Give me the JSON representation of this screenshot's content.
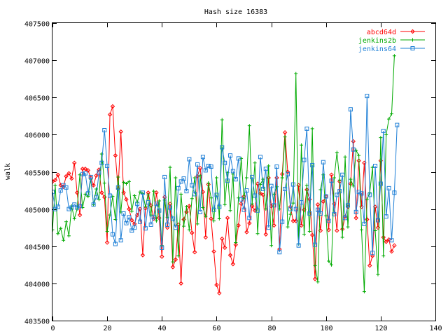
{
  "chart_data": {
    "type": "line",
    "title": "Hash size 16383",
    "xlabel": "",
    "ylabel": "walk",
    "xlim": [
      0,
      140
    ],
    "ylim": [
      403500,
      407500
    ],
    "x_ticks": [
      0,
      20,
      40,
      60,
      80,
      100,
      120,
      140
    ],
    "y_ticks": [
      403500,
      404000,
      404500,
      405000,
      405500,
      406000,
      406500,
      407000,
      407500
    ],
    "grid": false,
    "legend_position": "top-right",
    "series": [
      {
        "name": "abcd64d",
        "color": "#ff0000",
        "marker": "diamond",
        "values": [
          405370,
          405390,
          405460,
          405320,
          405300,
          405440,
          405480,
          405410,
          405620,
          405220,
          404920,
          405540,
          405540,
          405520,
          405420,
          405320,
          405450,
          405530,
          405220,
          405160,
          404550,
          406270,
          406380,
          405720,
          405270,
          406040,
          405220,
          405130,
          405000,
          404850,
          404800,
          404920,
          405000,
          404380,
          405010,
          405220,
          405050,
          404870,
          405220,
          404880,
          404360,
          405160,
          404750,
          405070,
          404220,
          404320,
          404790,
          404000,
          404860,
          404960,
          405040,
          404680,
          404420,
          405440,
          405550,
          405230,
          404620,
          405330,
          404870,
          404430,
          403980,
          403870,
          404600,
          404480,
          404880,
          404380,
          404260,
          404520,
          404780,
          405070,
          405170,
          404690,
          404810,
          405040,
          404980,
          405340,
          405210,
          405190,
          404660,
          405420,
          405040,
          404780,
          405420,
          404460,
          405470,
          406030,
          405500,
          405030,
          404840,
          404840,
          405320,
          404780,
          404990,
          405260,
          405130,
          404650,
          404060,
          405060,
          404710,
          405100,
          405170,
          404720,
          405460,
          405070,
          404710,
          405370,
          404730,
          404900,
          405030,
          405340,
          405910,
          404880,
          405650,
          405030,
          405620,
          404860,
          404240,
          404370,
          405030,
          404750,
          405650,
          404620,
          404560,
          404590,
          404430,
          404510
        ]
      },
      {
        "name": "jenkins2b",
        "color": "#00aa00",
        "marker": "plus",
        "values": [
          404720,
          405320,
          404670,
          404740,
          404580,
          404830,
          404640,
          405040,
          404870,
          405000,
          405460,
          405020,
          405200,
          405170,
          405400,
          405060,
          405270,
          405130,
          405740,
          405350,
          404700,
          404920,
          405170,
          404860,
          405430,
          404960,
          405360,
          405340,
          405370,
          404970,
          405180,
          405090,
          405230,
          405210,
          405030,
          405190,
          404920,
          405240,
          404840,
          405110,
          404510,
          405120,
          404890,
          405560,
          404290,
          405420,
          404370,
          405200,
          404770,
          405030,
          404720,
          405140,
          405420,
          404800,
          405450,
          405020,
          404900,
          405350,
          405150,
          404840,
          405420,
          404870,
          406200,
          405060,
          405490,
          404980,
          405470,
          404550,
          405150,
          405680,
          405140,
          405420,
          406120,
          405070,
          405620,
          404670,
          405330,
          405400,
          405000,
          405580,
          404510,
          405200,
          405300,
          405000,
          405420,
          405970,
          404760,
          404930,
          405080,
          406820,
          404530,
          405860,
          404660,
          405320,
          404700,
          406080,
          404240,
          404020,
          405260,
          405460,
          404910,
          404300,
          404250,
          405420,
          405760,
          405390,
          404620,
          405700,
          404760,
          405400,
          405310,
          405790,
          405720,
          404720,
          403890,
          405130,
          405220,
          405560,
          404710,
          404120,
          405960,
          404370,
          406000,
          406210,
          406280,
          407060
        ]
      },
      {
        "name": "jenkins64",
        "color": "#1e7fd6",
        "marker": "square",
        "values": [
          405230,
          405000,
          405030,
          405250,
          405320,
          405290,
          405000,
          405020,
          405060,
          405020,
          405040,
          405470,
          405480,
          405210,
          405430,
          405060,
          405160,
          405490,
          405620,
          406060,
          405580,
          405180,
          404660,
          404530,
          405290,
          404580,
          404940,
          404810,
          404890,
          404710,
          404750,
          405070,
          404830,
          405220,
          404740,
          405090,
          404790,
          404890,
          405070,
          404980,
          404480,
          405430,
          404790,
          405020,
          404870,
          404750,
          405280,
          405370,
          405410,
          405240,
          405670,
          405320,
          405200,
          405600,
          404960,
          405700,
          405520,
          405580,
          405570,
          404990,
          405190,
          405030,
          405830,
          405620,
          405380,
          405720,
          405510,
          405400,
          405680,
          405130,
          404990,
          405250,
          404880,
          405430,
          405180,
          404980,
          405700,
          405270,
          405540,
          404750,
          405310,
          405050,
          405570,
          404420,
          404830,
          405270,
          405470,
          405000,
          405330,
          405000,
          404510,
          405090,
          405660,
          406080,
          404940,
          405590,
          404520,
          404990,
          404940,
          405630,
          405170,
          404840,
          405380,
          404930,
          405190,
          405240,
          405460,
          404880,
          405050,
          406340,
          405800,
          404960,
          405230,
          405210,
          404800,
          406520,
          405190,
          404410,
          405580,
          404850,
          405340,
          406050,
          404900,
          405280,
          404580,
          405220,
          406130
        ]
      }
    ]
  }
}
